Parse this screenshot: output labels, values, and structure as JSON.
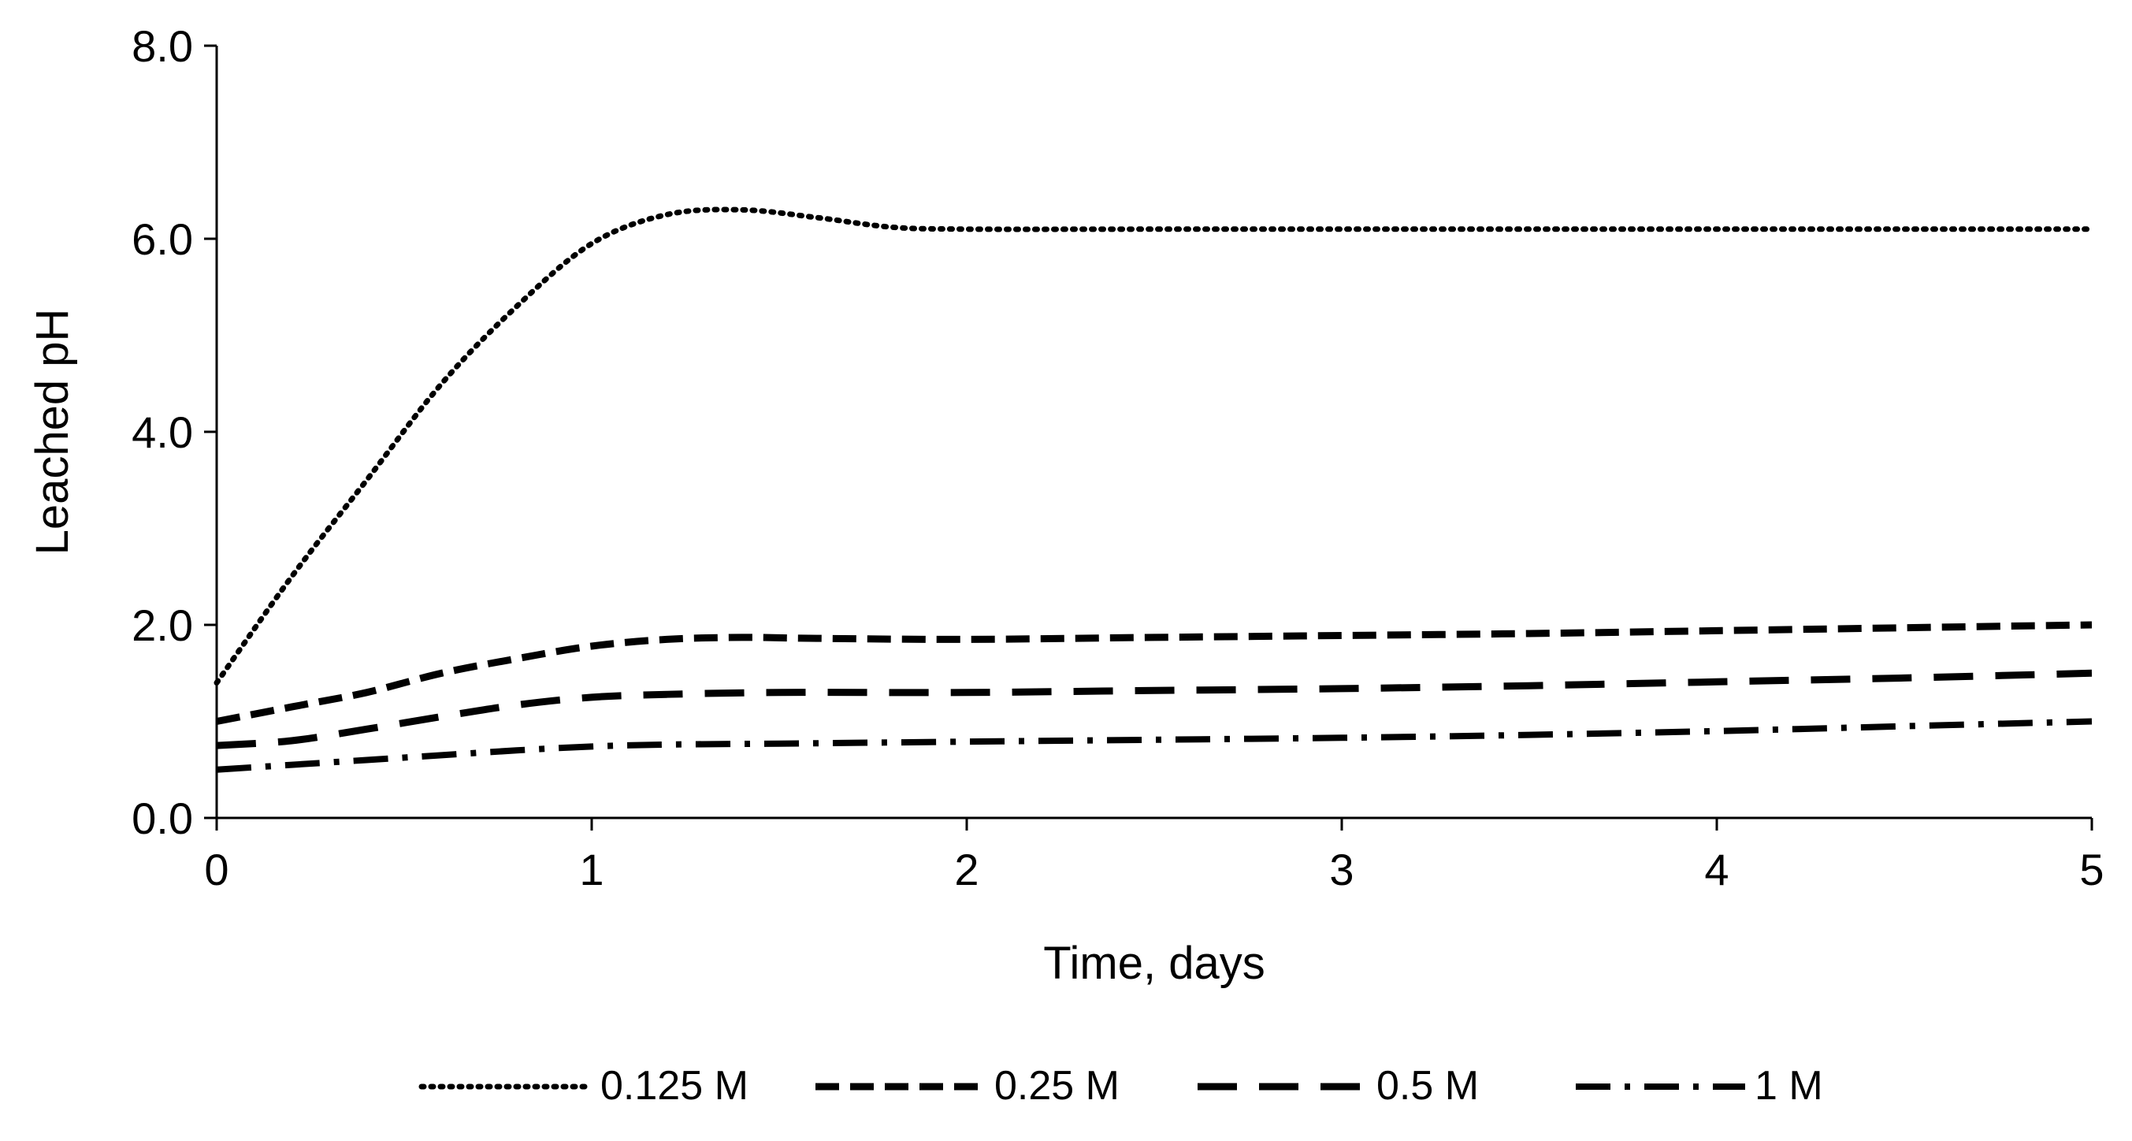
{
  "chart_data": {
    "type": "line",
    "title": "",
    "xlabel": "Time, days",
    "ylabel": "Leached pH",
    "xlim": [
      0,
      5
    ],
    "ylim": [
      0,
      8
    ],
    "x_ticks": [
      0,
      1,
      2,
      3,
      4,
      5
    ],
    "y_ticks": [
      0,
      2,
      4,
      6,
      8
    ],
    "x_tick_labels": [
      "0",
      "1",
      "2",
      "3",
      "4",
      "5"
    ],
    "y_tick_labels": [
      "0.0",
      "2.0",
      "4.0",
      "6.0",
      "8.0"
    ],
    "grid": false,
    "legend_position": "bottom",
    "line_color": "#000000",
    "series": [
      {
        "name": "0.125 M",
        "style": "dotted",
        "x": [
          0,
          0.2,
          0.4,
          0.6,
          0.8,
          1.0,
          1.2,
          1.4,
          1.6,
          1.8,
          2.0,
          2.5,
          3.0,
          3.5,
          4.0,
          4.5,
          5.0
        ],
        "y": [
          1.4,
          2.5,
          3.5,
          4.5,
          5.3,
          5.95,
          6.25,
          6.3,
          6.22,
          6.12,
          6.1,
          6.1,
          6.1,
          6.1,
          6.1,
          6.1,
          6.1
        ]
      },
      {
        "name": "0.25 M",
        "style": "dashed-short",
        "x": [
          0,
          0.2,
          0.4,
          0.6,
          0.8,
          1.0,
          1.2,
          1.4,
          1.6,
          2.0,
          2.5,
          3.0,
          3.5,
          4.0,
          4.5,
          5.0
        ],
        "y": [
          1.0,
          1.15,
          1.3,
          1.5,
          1.65,
          1.78,
          1.85,
          1.87,
          1.86,
          1.85,
          1.87,
          1.89,
          1.91,
          1.94,
          1.97,
          2.0
        ]
      },
      {
        "name": "0.5 M",
        "style": "dashed-long",
        "x": [
          0,
          0.2,
          0.4,
          0.6,
          0.8,
          1.0,
          1.2,
          1.5,
          2.0,
          2.5,
          3.0,
          3.5,
          4.0,
          4.5,
          5.0
        ],
        "y": [
          0.75,
          0.8,
          0.92,
          1.05,
          1.17,
          1.25,
          1.28,
          1.3,
          1.3,
          1.32,
          1.34,
          1.37,
          1.41,
          1.45,
          1.5
        ]
      },
      {
        "name": "1 M",
        "style": "dash-dot",
        "x": [
          0,
          0.2,
          0.4,
          0.6,
          0.8,
          1.0,
          1.2,
          1.5,
          2.0,
          2.5,
          3.0,
          3.5,
          4.0,
          4.5,
          5.0
        ],
        "y": [
          0.5,
          0.55,
          0.6,
          0.65,
          0.7,
          0.74,
          0.76,
          0.77,
          0.79,
          0.81,
          0.83,
          0.86,
          0.9,
          0.95,
          1.0
        ]
      }
    ]
  }
}
